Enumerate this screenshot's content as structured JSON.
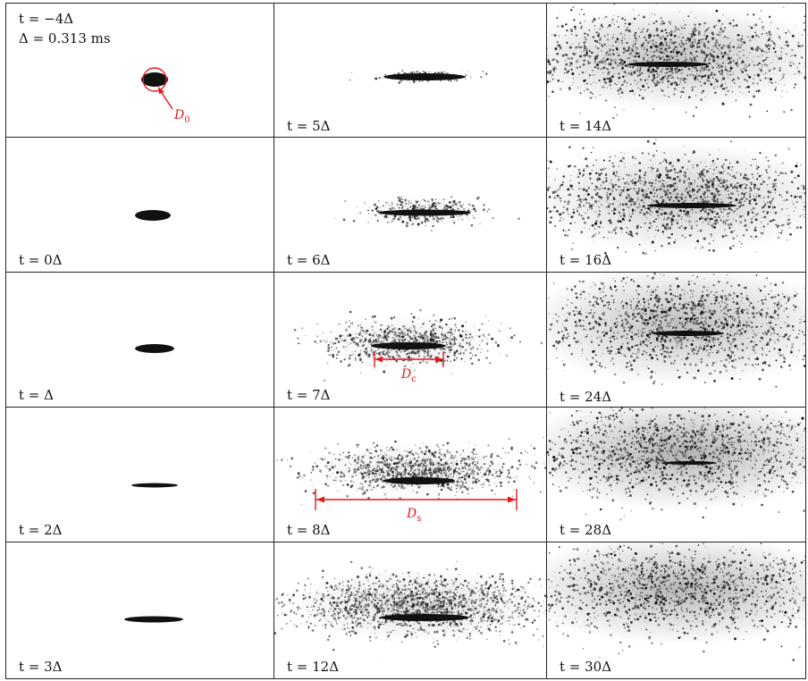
{
  "header": {
    "time_line": "t = −4Δ",
    "delta_line": "Δ = 0.313 ms"
  },
  "annotations": {
    "d0": "D",
    "d0_sub": "0",
    "dc": "D",
    "dc_sub": "c",
    "ds": "D",
    "ds_sub": "s"
  },
  "columns": [
    {
      "frames": [
        {
          "label": ""
        },
        {
          "label": "t = 0Δ"
        },
        {
          "label": "t = Δ"
        },
        {
          "label": "t = 2Δ"
        },
        {
          "label": "t = 3Δ"
        }
      ]
    },
    {
      "frames": [
        {
          "label": "t = 5Δ"
        },
        {
          "label": "t = 6Δ"
        },
        {
          "label": "t = 7Δ"
        },
        {
          "label": "t = 8Δ"
        },
        {
          "label": "t = 12Δ"
        }
      ]
    },
    {
      "frames": [
        {
          "label": "t = 14Δ"
        },
        {
          "label": "t = 16Δ"
        },
        {
          "label": "t = 24Δ"
        },
        {
          "label": "t = 28Δ"
        },
        {
          "label": "t = 30Δ"
        }
      ]
    }
  ],
  "colors": {
    "annotation": "#e8151b",
    "ink": "#111111"
  }
}
